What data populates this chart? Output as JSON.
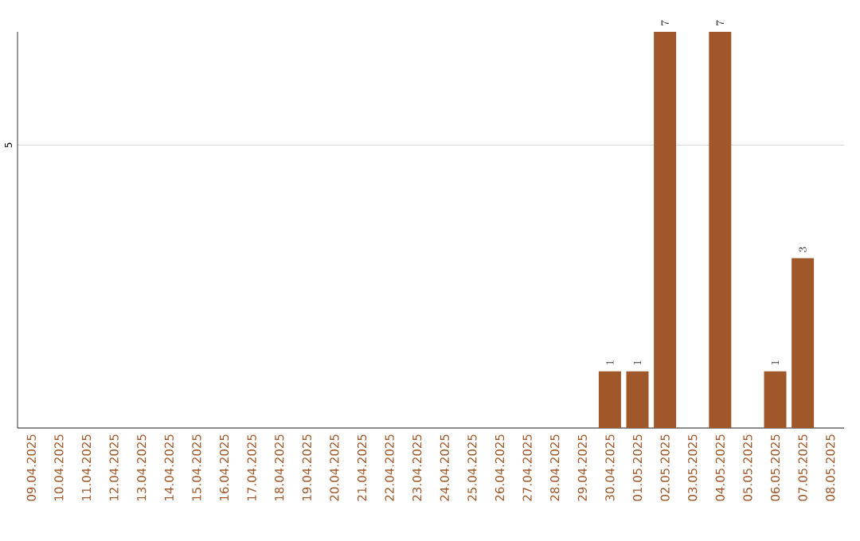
{
  "chart_data": {
    "type": "bar",
    "categories": [
      "09.04.2025",
      "10.04.2025",
      "11.04.2025",
      "12.04.2025",
      "13.04.2025",
      "14.04.2025",
      "15.04.2025",
      "16.04.2025",
      "17.04.2025",
      "18.04.2025",
      "19.04.2025",
      "20.04.2025",
      "21.04.2025",
      "22.04.2025",
      "23.04.2025",
      "24.04.2025",
      "25.04.2025",
      "26.04.2025",
      "27.04.2025",
      "28.04.2025",
      "29.04.2025",
      "30.04.2025",
      "01.05.2025",
      "02.05.2025",
      "03.05.2025",
      "04.05.2025",
      "05.05.2025",
      "06.05.2025",
      "07.05.2025",
      "08.05.2025"
    ],
    "values": [
      null,
      null,
      null,
      null,
      null,
      null,
      null,
      null,
      null,
      null,
      null,
      null,
      null,
      null,
      null,
      null,
      null,
      null,
      null,
      null,
      null,
      1,
      1,
      7,
      null,
      7,
      null,
      1,
      3,
      null
    ],
    "color": "#a0582a",
    "ylim": [
      0,
      7
    ],
    "yticks": [
      {
        "value": 0,
        "label": null
      },
      5
    ],
    "grid": "y",
    "data_labels": true
  }
}
